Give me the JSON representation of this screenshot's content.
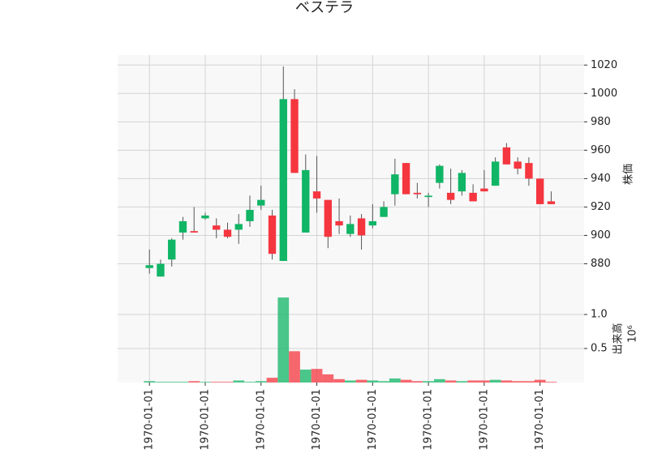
{
  "chart_data": {
    "type": "candlestick",
    "title": "ベステラ",
    "ylabel": "株価",
    "categories": [
      "1970-01-01",
      null,
      null,
      null,
      null,
      "1970-01-01",
      null,
      null,
      null,
      null,
      "1970-01-01",
      null,
      null,
      null,
      null,
      "1970-01-01",
      null,
      null,
      null,
      null,
      "1970-01-01",
      null,
      null,
      null,
      null,
      "1970-01-01",
      null,
      null,
      null,
      null,
      "1970-01-01",
      null,
      null,
      null,
      null,
      "1970-01-01",
      null
    ],
    "open": [
      877,
      871,
      883,
      902,
      903,
      912,
      907,
      904,
      904,
      910,
      921,
      914,
      882,
      996,
      902,
      931,
      925,
      910,
      901,
      912,
      907,
      913,
      929,
      951,
      930,
      927,
      937,
      930,
      931,
      930,
      933,
      935,
      962,
      952,
      951,
      940,
      924
    ],
    "high": [
      890,
      883,
      898,
      913,
      920,
      916,
      912,
      909,
      915,
      928,
      935,
      918,
      1019,
      1003,
      957,
      956,
      925,
      926,
      914,
      915,
      922,
      924,
      954,
      951,
      937,
      930,
      950,
      947,
      946,
      936,
      946,
      955,
      965,
      955,
      955,
      940,
      931
    ],
    "low": [
      873,
      871,
      878,
      897,
      902,
      911,
      898,
      898,
      894,
      906,
      918,
      883,
      882,
      944,
      902,
      916,
      891,
      901,
      899,
      890,
      905,
      913,
      921,
      929,
      926,
      920,
      933,
      922,
      928,
      924,
      931,
      935,
      950,
      943,
      935,
      922,
      922
    ],
    "close": [
      879,
      880,
      897,
      910,
      902,
      914,
      904,
      899,
      908,
      918,
      925,
      887,
      996,
      944,
      946,
      926,
      899,
      907,
      908,
      900,
      910,
      920,
      943,
      929,
      929,
      928,
      949,
      925,
      944,
      924,
      931,
      952,
      950,
      947,
      940,
      922,
      922
    ],
    "ylim": [
      862,
      1027
    ],
    "yticks": [
      880,
      900,
      920,
      940,
      960,
      980,
      1000,
      1020
    ],
    "up_color": "#10b565",
    "down_color": "#f5363f",
    "grid": true,
    "volume": {
      "label": "出来高",
      "offset_label": "10⁶",
      "values": [
        0.02,
        0.01,
        0.01,
        0.01,
        0.02,
        0.01,
        0.01,
        0.01,
        0.03,
        0.01,
        0.02,
        0.07,
        1.25,
        0.46,
        0.19,
        0.2,
        0.12,
        0.05,
        0.03,
        0.04,
        0.03,
        0.02,
        0.06,
        0.04,
        0.02,
        0.02,
        0.05,
        0.03,
        0.02,
        0.03,
        0.03,
        0.04,
        0.03,
        0.02,
        0.02,
        0.04,
        0.01
      ],
      "ylim": [
        0,
        1.37
      ],
      "yticks": [
        0.5,
        {
          "value": 1,
          "label": "1.0"
        }
      ]
    }
  }
}
